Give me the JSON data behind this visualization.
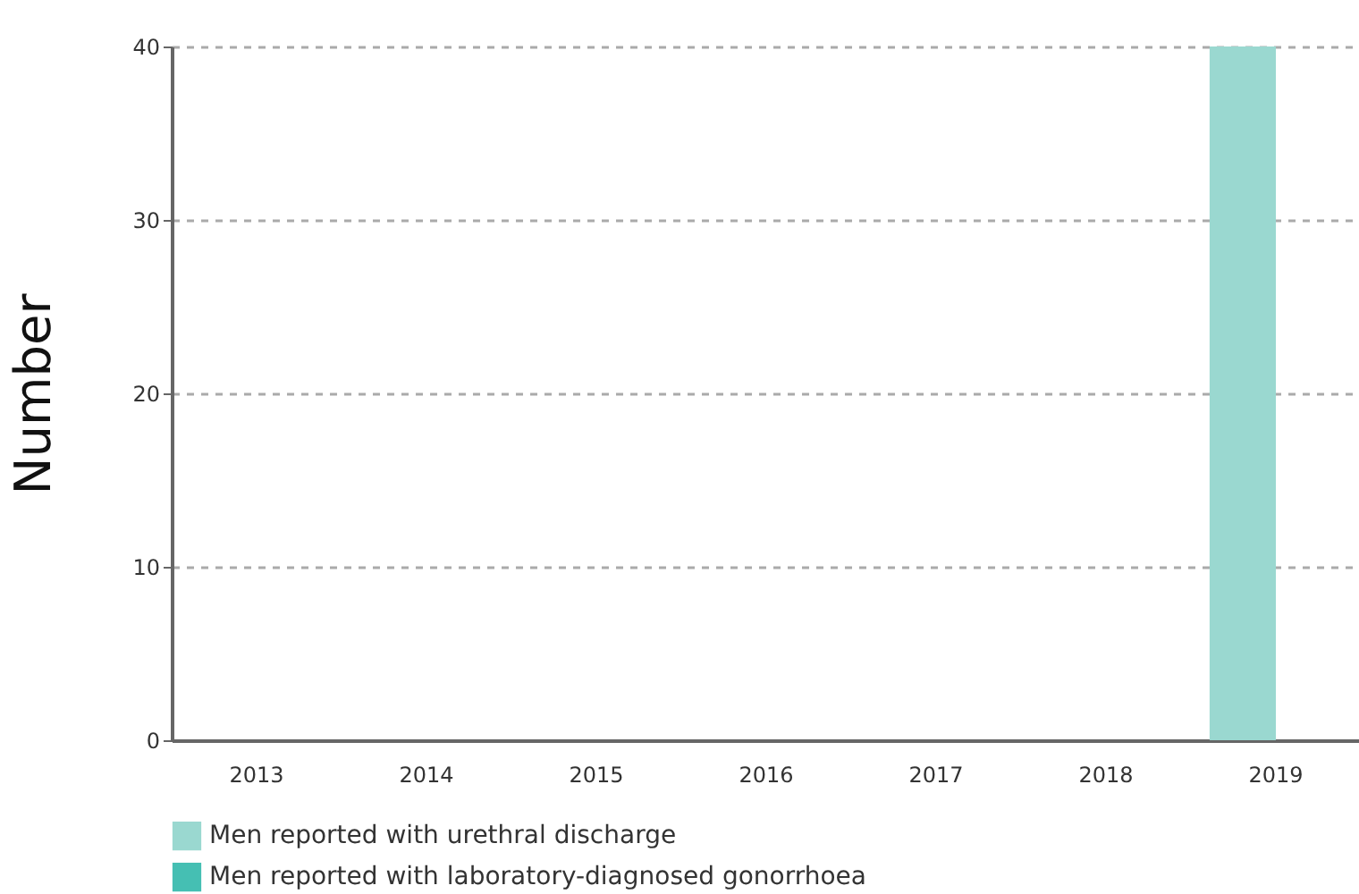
{
  "chart_data": {
    "type": "bar",
    "ylabel": "Number",
    "categories": [
      "2013",
      "2014",
      "2015",
      "2016",
      "2017",
      "2018",
      "2019"
    ],
    "series": [
      {
        "name": "Men reported with urethral discharge",
        "color": "#9ad8d0",
        "values": [
          null,
          null,
          null,
          null,
          null,
          null,
          40
        ]
      },
      {
        "name": "Men reported with laboratory-diagnosed gonorrhoea",
        "color": "#45bfb3",
        "values": [
          null,
          null,
          null,
          null,
          null,
          null,
          null
        ]
      }
    ],
    "ylim": [
      0,
      40
    ],
    "yticks": [
      0,
      10,
      20,
      30,
      40
    ],
    "grid": "y",
    "legend": "bottom left"
  }
}
